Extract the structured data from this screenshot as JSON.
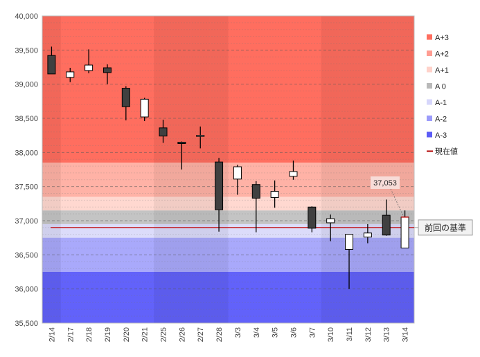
{
  "chart_data": {
    "type": "candlestick",
    "title": "",
    "xlabel": "",
    "ylabel": "",
    "ylim": [
      35500,
      40000
    ],
    "y_ticks": [
      35500,
      36000,
      36500,
      37000,
      37500,
      38000,
      38500,
      39000,
      39500,
      40000
    ],
    "y_tick_labels": [
      "35,500",
      "36,000",
      "36,500",
      "37,000",
      "37,500",
      "38,000",
      "38,500",
      "39,000",
      "39,500",
      "40,000"
    ],
    "grid": "horizontal dashed",
    "categories": [
      "2/14",
      "2/17",
      "2/18",
      "2/19",
      "2/20",
      "2/21",
      "2/25",
      "2/26",
      "2/27",
      "2/28",
      "3/3",
      "3/4",
      "3/5",
      "3/6",
      "3/7",
      "3/10",
      "3/11",
      "3/12",
      "3/13",
      "3/14"
    ],
    "candles": [
      {
        "date": "2/14",
        "open": 39420,
        "high": 39550,
        "low": 39150,
        "close": 39150
      },
      {
        "date": "2/17",
        "open": 39100,
        "high": 39240,
        "low": 39030,
        "close": 39180
      },
      {
        "date": "2/18",
        "open": 39200,
        "high": 39510,
        "low": 39160,
        "close": 39280
      },
      {
        "date": "2/19",
        "open": 39240,
        "high": 39290,
        "low": 39000,
        "close": 39170
      },
      {
        "date": "2/20",
        "open": 38940,
        "high": 38970,
        "low": 38470,
        "close": 38670
      },
      {
        "date": "2/21",
        "open": 38520,
        "high": 38800,
        "low": 38460,
        "close": 38780
      },
      {
        "date": "2/25",
        "open": 38360,
        "high": 38480,
        "low": 38140,
        "close": 38240
      },
      {
        "date": "2/26",
        "open": 38150,
        "high": 38160,
        "low": 37750,
        "close": 38130
      },
      {
        "date": "2/27",
        "open": 38240,
        "high": 38380,
        "low": 38060,
        "close": 38250
      },
      {
        "date": "2/28",
        "open": 37860,
        "high": 37920,
        "low": 36840,
        "close": 37160
      },
      {
        "date": "3/3",
        "open": 37610,
        "high": 37820,
        "low": 37380,
        "close": 37790
      },
      {
        "date": "3/4",
        "open": 37530,
        "high": 37580,
        "low": 36830,
        "close": 37330
      },
      {
        "date": "3/5",
        "open": 37340,
        "high": 37590,
        "low": 37190,
        "close": 37430
      },
      {
        "date": "3/6",
        "open": 37650,
        "high": 37880,
        "low": 37600,
        "close": 37720
      },
      {
        "date": "3/7",
        "open": 37200,
        "high": 37210,
        "low": 36830,
        "close": 36890
      },
      {
        "date": "3/10",
        "open": 36970,
        "high": 37090,
        "low": 36700,
        "close": 37030
      },
      {
        "date": "3/11",
        "open": 36580,
        "high": 36800,
        "low": 36000,
        "close": 36800
      },
      {
        "date": "3/12",
        "open": 36760,
        "high": 36950,
        "low": 36670,
        "close": 36820
      },
      {
        "date": "3/13",
        "open": 37080,
        "high": 37310,
        "low": 36780,
        "close": 36790
      },
      {
        "date": "3/14",
        "open": 36600,
        "high": 37150,
        "low": 36600,
        "close": 37053
      }
    ],
    "bands": [
      {
        "name": "A+3",
        "from": 37850,
        "to": 40000,
        "color": "#ff6e5f"
      },
      {
        "name": "A+2",
        "from": 37350,
        "to": 37850,
        "color": "#ffb2a6"
      },
      {
        "name": "A+1",
        "from": 37150,
        "to": 37350,
        "color": "#ffd8d0"
      },
      {
        "name": "A 0",
        "from": 36950,
        "to": 37150,
        "color": "#c4c4c4"
      },
      {
        "name": "A-1",
        "from": 36750,
        "to": 36950,
        "color": "#dcdcfa"
      },
      {
        "name": "A-2",
        "from": 36250,
        "to": 36750,
        "color": "#a9a9fb"
      },
      {
        "name": "A-3",
        "from": 35500,
        "to": 36250,
        "color": "#6262fa"
      }
    ],
    "legend": [
      {
        "label": "A+3",
        "color": "#ff6e5f",
        "kind": "box"
      },
      {
        "label": "A+2",
        "color": "#ff9d92",
        "kind": "box"
      },
      {
        "label": "A+1",
        "color": "#ffd2ca",
        "kind": "box"
      },
      {
        "label": "A 0",
        "color": "#b9b9b9",
        "kind": "box"
      },
      {
        "label": "A-1",
        "color": "#d6d6fb",
        "kind": "box"
      },
      {
        "label": "A-2",
        "color": "#9b9bfa",
        "kind": "box"
      },
      {
        "label": "A-3",
        "color": "#5c5cf6",
        "kind": "box"
      },
      {
        "label": "現在値",
        "color": "#b00000",
        "kind": "line"
      }
    ],
    "legend_position": "right",
    "reference_line": {
      "label": "前回の基準",
      "value": 36900,
      "color": "#c00000"
    },
    "current_value": {
      "label": "37,053",
      "value": 37053
    }
  }
}
